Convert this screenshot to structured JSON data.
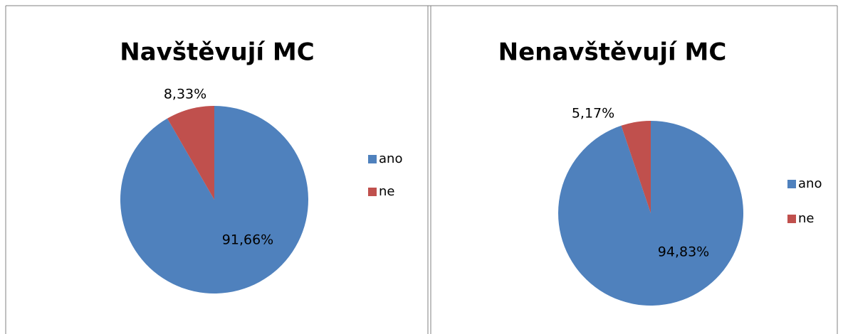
{
  "chart_data": [
    {
      "type": "pie",
      "title": "Navštěvují MC",
      "categories": [
        "ano",
        "ne"
      ],
      "values": [
        91.66,
        8.33
      ],
      "value_labels": [
        "91,66%",
        "8,33%"
      ],
      "colors": [
        "#4f81bd",
        "#c0504d"
      ]
    },
    {
      "type": "pie",
      "title": "Nenavštěvují MC",
      "categories": [
        "ano",
        "ne"
      ],
      "values": [
        94.83,
        5.17
      ],
      "value_labels": [
        "94,83%",
        "5,17%"
      ],
      "colors": [
        "#4f81bd",
        "#c0504d"
      ]
    }
  ]
}
